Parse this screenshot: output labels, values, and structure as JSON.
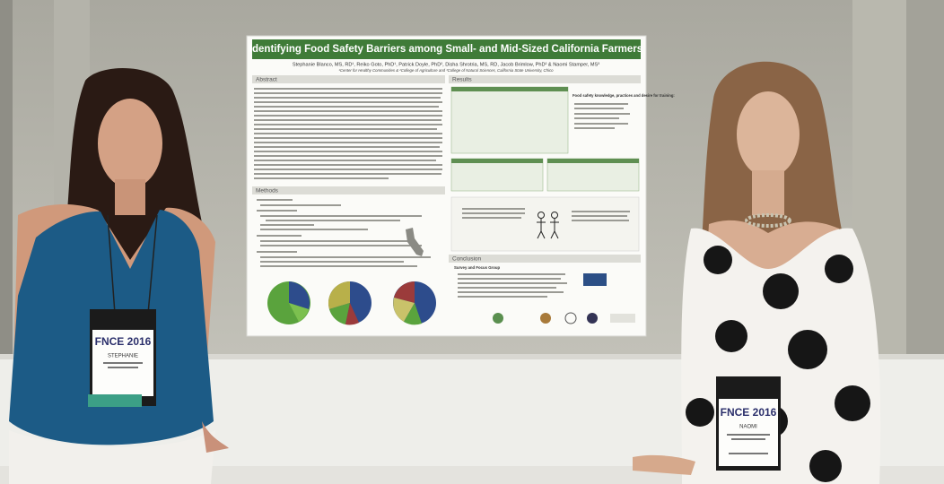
{
  "poster": {
    "title": "Identifying Food Safety Barriers among Small- and Mid-Sized California Farmers",
    "authors": "Stephanie Blanco, MS, RD¹, Reiko Goto, PhD¹, Patrick Doyle, PhD², Disha Shrotria, MS, RD, Jacob Brimlow, PhD² & Naomi Stamper, MS³",
    "affiliation": "¹Center for Healthy Communities & ²College of Agriculture and ³College of Natural Sciences, California State University, Chico",
    "sections": {
      "abstract": "Abstract",
      "methods": "Methods",
      "results": "Results",
      "conclusion": "Conclusion"
    },
    "results_box": "Food safety knowledge, practices and desire for training:",
    "conclusion_heading": "Survey and Focus Group"
  },
  "badges": [
    {
      "event": "FNCE 2016",
      "name": "STEPHANIE"
    },
    {
      "event": "FNCE 2016",
      "name": "NAOMI"
    }
  ]
}
